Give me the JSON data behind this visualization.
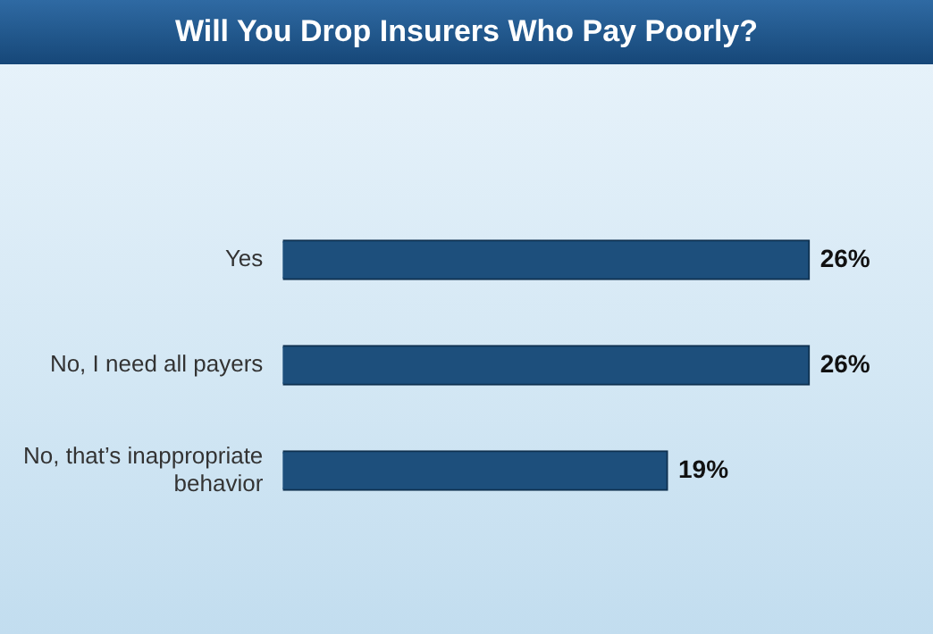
{
  "chart_data": {
    "type": "bar",
    "orientation": "horizontal",
    "title": "Will You Drop Insurers Who Pay Poorly?",
    "categories": [
      "Yes",
      "No, I need all payers",
      "No, that’s inappropriate behavior"
    ],
    "values": [
      26,
      26,
      19
    ],
    "value_labels": [
      "26%",
      "26%",
      "19%"
    ],
    "color": "#1d4f7c"
  }
}
